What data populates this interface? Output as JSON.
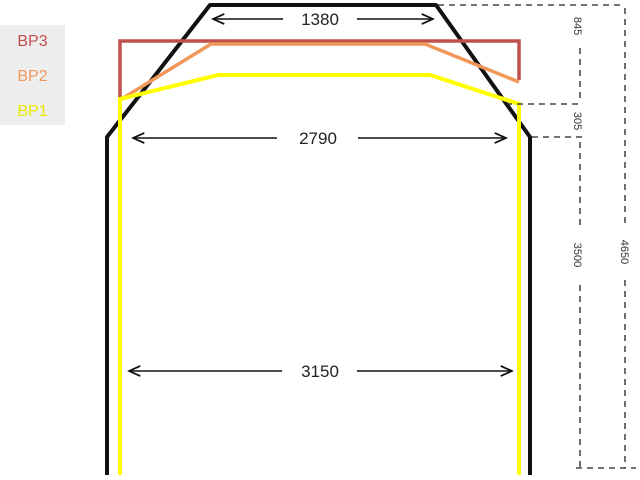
{
  "legend": {
    "items": [
      {
        "label": "BP3",
        "color": "#c0504d"
      },
      {
        "label": "BP2",
        "color": "#f0975a"
      },
      {
        "label": "BP1",
        "color": "#ffff00"
      }
    ]
  },
  "outline": {
    "color": "#111111"
  },
  "dimensions": {
    "top_width": "1380",
    "mid_width": "2790",
    "bottom_width": "3150",
    "top_height": "845",
    "shoulder_height": "305",
    "side_height": "3500",
    "total_height": "4650"
  }
}
